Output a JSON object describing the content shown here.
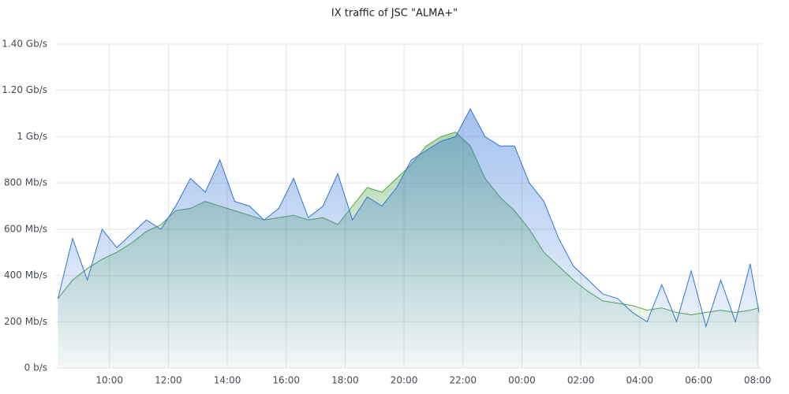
{
  "chart_data": {
    "type": "area",
    "title": "IX traffic of JSC \"ALMA+\"",
    "x": [
      8.25,
      8.75,
      9.25,
      9.75,
      10.25,
      10.75,
      11.25,
      11.75,
      12.25,
      12.75,
      13.25,
      13.75,
      14.25,
      14.75,
      15.25,
      15.75,
      16.25,
      16.75,
      17.25,
      17.75,
      18.25,
      18.75,
      19.25,
      19.75,
      20.25,
      20.75,
      21.25,
      21.75,
      22.25,
      22.75,
      23.25,
      23.75,
      24.25,
      24.75,
      25.25,
      25.75,
      26.25,
      26.75,
      27.25,
      27.75,
      28.25,
      28.75,
      29.25,
      29.75,
      30.25,
      30.75,
      31.25,
      31.75,
      32.05
    ],
    "series": [
      {
        "color": "#56a64b",
        "values": [
          300,
          380,
          430,
          470,
          500,
          540,
          590,
          620,
          680,
          690,
          720,
          700,
          680,
          660,
          640,
          650,
          660,
          640,
          650,
          620,
          700,
          780,
          760,
          820,
          880,
          960,
          1000,
          1020,
          960,
          820,
          740,
          680,
          600,
          500,
          440,
          380,
          330,
          290,
          280,
          270,
          250,
          260,
          240,
          230,
          240,
          250,
          240,
          250,
          260
        ]
      },
      {
        "color": "#3274d9",
        "values": [
          300,
          560,
          380,
          600,
          520,
          580,
          640,
          600,
          700,
          820,
          760,
          900,
          720,
          700,
          640,
          690,
          820,
          650,
          700,
          840,
          640,
          740,
          700,
          780,
          900,
          940,
          980,
          1000,
          1120,
          1000,
          960,
          960,
          800,
          720,
          560,
          440,
          380,
          320,
          300,
          240,
          200,
          360,
          200,
          420,
          180,
          380,
          200,
          450,
          240
        ]
      }
    ],
    "xlim": [
      8.16,
      32.13
    ],
    "xticks": [
      {
        "value": 10,
        "label": "10:00"
      },
      {
        "value": 12,
        "label": "12:00"
      },
      {
        "value": 14,
        "label": "14:00"
      },
      {
        "value": 16,
        "label": "16:00"
      },
      {
        "value": 18,
        "label": "18:00"
      },
      {
        "value": 20,
        "label": "20:00"
      },
      {
        "value": 22,
        "label": "22:00"
      },
      {
        "value": 24,
        "label": "00:00"
      },
      {
        "value": 26,
        "label": "02:00"
      },
      {
        "value": 28,
        "label": "04:00"
      },
      {
        "value": 30,
        "label": "06:00"
      },
      {
        "value": 32,
        "label": "08:00"
      }
    ],
    "ylim": [
      0,
      1400
    ],
    "yticks": [
      {
        "value": 0,
        "label": "0 b/s"
      },
      {
        "value": 200,
        "label": "200 Mb/s"
      },
      {
        "value": 400,
        "label": "400 Mb/s"
      },
      {
        "value": 600,
        "label": "600 Mb/s"
      },
      {
        "value": 800,
        "label": "800 Mb/s"
      },
      {
        "value": 1000,
        "label": "1 Gb/s"
      },
      {
        "value": 1200,
        "label": "1.20 Gb/s"
      },
      {
        "value": 1400,
        "label": "1.40 Gb/s"
      }
    ],
    "grid": true
  }
}
